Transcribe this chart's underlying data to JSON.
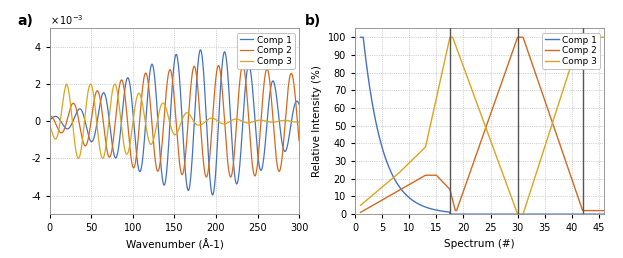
{
  "panel_a": {
    "xlim": [
      0,
      300
    ],
    "ylim": [
      -0.005,
      0.005
    ],
    "xlabel": "Wavenumber (Å-1)",
    "legend": [
      "Comp 1",
      "Comp 2",
      "Comp 3"
    ],
    "colors": [
      "#4472C4",
      "#D2691E",
      "#DAA520"
    ],
    "label": "a)"
  },
  "panel_b": {
    "xlim": [
      0,
      46
    ],
    "ylim": [
      0,
      105
    ],
    "xlabel": "Spectrum (#)",
    "ylabel": "Relative Intensity (%)",
    "legend": [
      "Comp 1",
      "Comp 2",
      "Comp 3"
    ],
    "colors": [
      "#4472C4",
      "#D2691E",
      "#DAA520"
    ],
    "vlines": [
      17.5,
      30,
      42
    ],
    "label": "b)"
  }
}
